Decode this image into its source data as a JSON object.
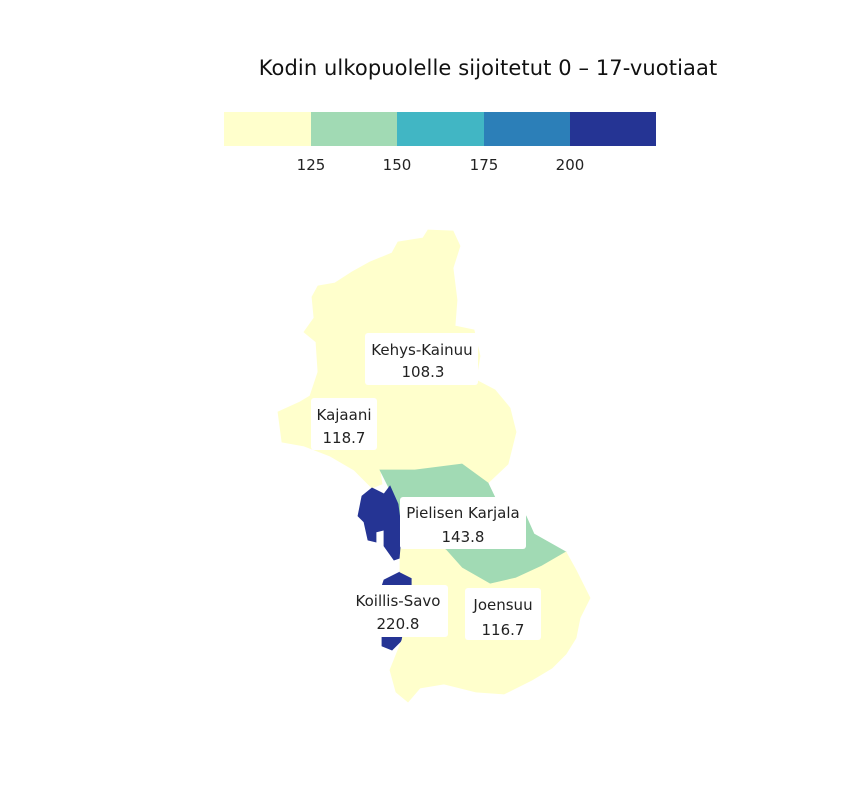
{
  "title": "Kodin ulkopuolelle sijoitetut 0 – 17-vuotiaat",
  "legend": {
    "colors": [
      "#ffffcc",
      "#a1dab4",
      "#41b6c4",
      "#2c7fb8",
      "#253494"
    ],
    "ticks": [
      "125",
      "150",
      "175",
      "200"
    ]
  },
  "regions": [
    {
      "name": "Kehys-Kainuu",
      "value": "108.3",
      "color": "#ffffcc"
    },
    {
      "name": "Kajaani",
      "value": "118.7",
      "color": "#ffffcc"
    },
    {
      "name": "Pielisen Karjala",
      "value": "143.8",
      "color": "#a1dab4"
    },
    {
      "name": "Koillis-Savo",
      "value": "220.8",
      "color": "#253494"
    },
    {
      "name": "Joensuu",
      "value": "116.7",
      "color": "#ffffcc"
    }
  ]
}
